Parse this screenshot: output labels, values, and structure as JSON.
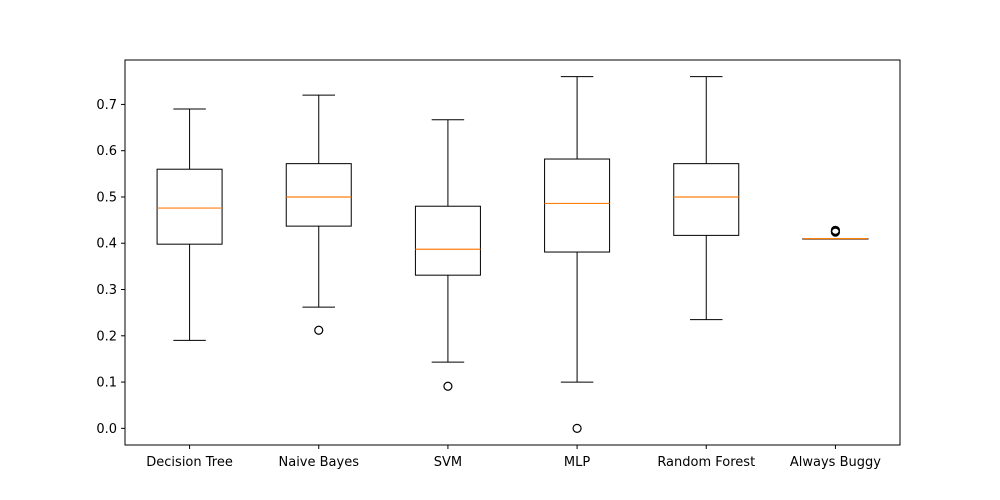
{
  "chart_data": {
    "type": "box",
    "title": "",
    "xlabel": "",
    "ylabel": "",
    "ylim": [
      -0.036,
      0.796
    ],
    "yticks": [
      0.0,
      0.1,
      0.2,
      0.3,
      0.4,
      0.5,
      0.6,
      0.7
    ],
    "ytick_labels": [
      "0.0",
      "0.1",
      "0.2",
      "0.3",
      "0.4",
      "0.5",
      "0.6",
      "0.7"
    ],
    "grid": false,
    "colors": {
      "box": "#000000",
      "median": "#ff7f0e",
      "background": "#ffffff"
    },
    "categories": [
      "Decision Tree",
      "Naive Bayes",
      "SVM",
      "MLP",
      "Random Forest",
      "Always Buggy"
    ],
    "boxes": [
      {
        "whisker_low": 0.19,
        "q1": 0.398,
        "median": 0.476,
        "q3": 0.56,
        "whisker_high": 0.69,
        "outliers": []
      },
      {
        "whisker_low": 0.262,
        "q1": 0.437,
        "median": 0.5,
        "q3": 0.572,
        "whisker_high": 0.72,
        "outliers": [
          0.212
        ]
      },
      {
        "whisker_low": 0.143,
        "q1": 0.331,
        "median": 0.387,
        "q3": 0.48,
        "whisker_high": 0.667,
        "outliers": [
          0.091
        ]
      },
      {
        "whisker_low": 0.1,
        "q1": 0.381,
        "median": 0.486,
        "q3": 0.582,
        "whisker_high": 0.76,
        "outliers": [
          0.0
        ]
      },
      {
        "whisker_low": 0.235,
        "q1": 0.417,
        "median": 0.5,
        "q3": 0.572,
        "whisker_high": 0.76,
        "outliers": []
      },
      {
        "whisker_low": 0.41,
        "q1": 0.41,
        "median": 0.41,
        "q3": 0.41,
        "whisker_high": 0.41,
        "outliers": [
          0.424,
          0.426,
          0.428
        ]
      }
    ]
  }
}
